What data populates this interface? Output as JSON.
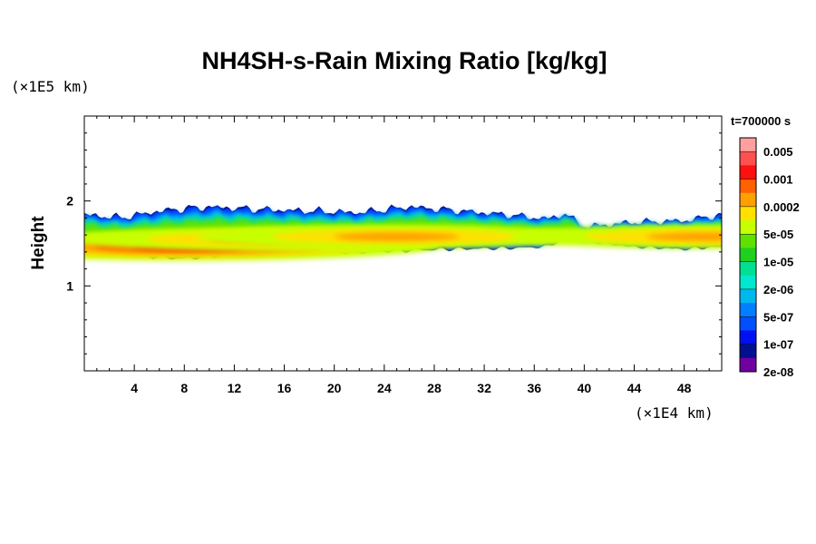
{
  "chart_data": {
    "type": "heatmap",
    "title": "NH4SH-s-Rain Mixing Ratio [kg/kg]",
    "ylabel": "Height",
    "x_unit": "(×1E4 km)",
    "y_unit": "(×1E5 km)",
    "time_label": "t=700000 s",
    "x_ticks": [
      "4",
      "8",
      "12",
      "16",
      "20",
      "24",
      "28",
      "32",
      "36",
      "40",
      "44",
      "48"
    ],
    "x_tick_values": [
      4,
      8,
      12,
      16,
      20,
      24,
      28,
      32,
      36,
      40,
      44,
      48
    ],
    "y_ticks": [
      "1",
      "2"
    ],
    "y_tick_values": [
      1,
      2
    ],
    "xlim": [
      0,
      51
    ],
    "ylim": [
      0,
      3
    ],
    "colorbar": {
      "labels": [
        "0.005",
        "0.001",
        "0.0002",
        "5e-05",
        "1e-05",
        "2e-06",
        "5e-07",
        "1e-07",
        "2e-08"
      ],
      "colors": [
        "#ffa0a0",
        "#ff5050",
        "#ff1010",
        "#ff6000",
        "#ffa000",
        "#ffe000",
        "#c8ff00",
        "#60e000",
        "#20d020",
        "#00e090",
        "#00e8d0",
        "#00b8f0",
        "#0080ff",
        "#0050ff",
        "#0010f0",
        "#001090",
        "#7000a0"
      ]
    },
    "cloud_layer": {
      "x": [
        0,
        3,
        6,
        8,
        10,
        14,
        18,
        22,
        26,
        30,
        34,
        37,
        38.5,
        40,
        44,
        48,
        51
      ],
      "top": [
        1.85,
        1.82,
        1.9,
        1.93,
        1.95,
        1.92,
        1.9,
        1.88,
        1.95,
        1.9,
        1.85,
        1.8,
        1.86,
        1.7,
        1.76,
        1.78,
        1.85
      ],
      "bottom": [
        1.42,
        1.35,
        1.32,
        1.3,
        1.33,
        1.36,
        1.37,
        1.38,
        1.4,
        1.42,
        1.43,
        1.45,
        1.55,
        1.52,
        1.45,
        1.42,
        1.45
      ],
      "cores": [
        {
          "x": 8.3,
          "y": 1.47,
          "value": 0.001
        },
        {
          "x": 15,
          "y": 1.55,
          "value": 0.0002
        },
        {
          "x": 25,
          "y": 1.58,
          "value": 0.0002
        },
        {
          "x": 50,
          "y": 1.58,
          "value": 0.0002
        }
      ]
    }
  }
}
